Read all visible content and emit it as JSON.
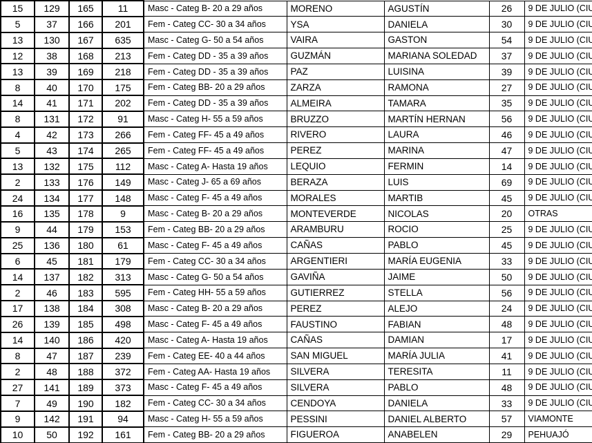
{
  "colors": {
    "background": "#ffffff",
    "grid_border": "#000000",
    "text": "#000000"
  },
  "table": {
    "rows": [
      [
        "15",
        "129",
        "165",
        "11",
        "Masc - Categ B- 20 a 29 años",
        "MORENO",
        "AGUSTÍN",
        "26",
        "9 DE JULIO (CIU"
      ],
      [
        "5",
        "37",
        "166",
        "201",
        "Fem - Categ CC- 30 a 34 años",
        "YSA",
        "DANIELA",
        "30",
        "9 DE JULIO (CIU"
      ],
      [
        "13",
        "130",
        "167",
        "635",
        "Masc - Categ G- 50 a 54 años",
        "VAIRA",
        "GASTON",
        "54",
        "9 DE JULIO (CIU"
      ],
      [
        "12",
        "38",
        "168",
        "213",
        "Fem - Categ DD - 35 a 39 años",
        "GUZMÁN",
        "MARIANA SOLEDAD",
        "37",
        "9 DE JULIO (CIU"
      ],
      [
        "13",
        "39",
        "169",
        "218",
        "Fem - Categ DD - 35 a 39 años",
        "PAZ",
        "LUISINA",
        "39",
        "9 DE JULIO (CIU"
      ],
      [
        "8",
        "40",
        "170",
        "175",
        "Fem - Categ BB- 20 a 29 años",
        "ZARZA",
        "RAMONA",
        "27",
        "9 DE JULIO (CIU"
      ],
      [
        "14",
        "41",
        "171",
        "202",
        "Fem - Categ DD - 35 a 39 años",
        "ALMEIRA",
        "TAMARA",
        "35",
        "9 DE JULIO (CIU"
      ],
      [
        "8",
        "131",
        "172",
        "91",
        "Masc - Categ H- 55 a 59 años",
        "BRUZZO",
        "MARTÍN HERNAN",
        "56",
        "9 DE JULIO (CIU"
      ],
      [
        "4",
        "42",
        "173",
        "266",
        "Fem - Categ FF- 45 a 49 años",
        "RIVERO",
        "LAURA",
        "46",
        "9 DE JULIO (CIU"
      ],
      [
        "5",
        "43",
        "174",
        "265",
        "Fem - Categ FF- 45 a 49 años",
        "PEREZ",
        "MARINA",
        "47",
        "9 DE JULIO (CIU"
      ],
      [
        "13",
        "132",
        "175",
        "112",
        "Masc - Categ A- Hasta 19 años",
        "LEQUIO",
        "FERMIN",
        "14",
        "9 DE JULIO (CIU"
      ],
      [
        "2",
        "133",
        "176",
        "149",
        "Masc - Categ J- 65 a 69 años",
        "BERAZA",
        "LUIS",
        "69",
        "9 DE JULIO (CIU"
      ],
      [
        "24",
        "134",
        "177",
        "148",
        "Masc - Categ F- 45 a 49 años",
        "MORALES",
        "MARTIB",
        "45",
        "9 DE JULIO (CIU"
      ],
      [
        "16",
        "135",
        "178",
        "9",
        "Masc - Categ B- 20 a 29 años",
        "MONTEVERDE",
        "NICOLAS",
        "20",
        "OTRAS"
      ],
      [
        "9",
        "44",
        "179",
        "153",
        "Fem - Categ BB- 20 a 29 años",
        "ARAMBURU",
        "ROCIO",
        "25",
        "9 DE JULIO (CIU"
      ],
      [
        "25",
        "136",
        "180",
        "61",
        "Masc - Categ F- 45 a 49 años",
        "CAÑAS",
        "PABLO",
        "45",
        "9 DE JULIO (CIU"
      ],
      [
        "6",
        "45",
        "181",
        "179",
        "Fem - Categ CC- 30 a 34 años",
        "ARGENTIERI",
        "MARÍA EUGENIA",
        "33",
        "9 DE JULIO (CIU"
      ],
      [
        "14",
        "137",
        "182",
        "313",
        "Masc - Categ G- 50 a 54 años",
        "GAVIÑA",
        "JAIME",
        "50",
        "9 DE JULIO (CIU"
      ],
      [
        "2",
        "46",
        "183",
        "595",
        "Fem - Categ HH- 55 a 59 años",
        "GUTIERREZ",
        "STELLA",
        "56",
        "9 DE JULIO (CIU"
      ],
      [
        "17",
        "138",
        "184",
        "308",
        "Masc - Categ B- 20 a 29 años",
        "PEREZ",
        "ALEJO",
        "24",
        "9 DE JULIO (CIU"
      ],
      [
        "26",
        "139",
        "185",
        "498",
        "Masc - Categ F- 45 a 49 años",
        "FAUSTINO",
        "FABIAN",
        "48",
        "9 DE JULIO (CIU"
      ],
      [
        "14",
        "140",
        "186",
        "420",
        "Masc - Categ A- Hasta 19 años",
        "CAÑAS",
        "DAMIAN",
        "17",
        "9 DE JULIO (CIU"
      ],
      [
        "8",
        "47",
        "187",
        "239",
        "Fem - Categ EE- 40 a 44 años",
        "SAN MIGUEL",
        "MARÍA JULIA",
        "41",
        "9 DE JULIO (CIU"
      ],
      [
        "2",
        "48",
        "188",
        "372",
        "Fem - Categ AA- Hasta 19 años",
        "SILVERA",
        "TERESITA",
        "11",
        "9 DE JULIO (CIU"
      ],
      [
        "27",
        "141",
        "189",
        "373",
        "Masc - Categ F- 45 a 49 años",
        "SILVERA",
        "PABLO",
        "48",
        "9 DE JULIO (CIU"
      ],
      [
        "7",
        "49",
        "190",
        "182",
        "Fem - Categ CC- 30 a 34 años",
        "CENDOYA",
        "DANIELA",
        "33",
        "9 DE JULIO (CIU"
      ],
      [
        "9",
        "142",
        "191",
        "94",
        "Masc - Categ H- 55 a 59 años",
        "PESSINI",
        "DANIEL ALBERTO",
        "57",
        "VIAMONTE"
      ],
      [
        "10",
        "50",
        "192",
        "161",
        "Fem - Categ BB- 20 a 29 años",
        "FIGUEROA",
        "ANABELEN",
        "29",
        "PEHUAJÓ"
      ]
    ]
  }
}
